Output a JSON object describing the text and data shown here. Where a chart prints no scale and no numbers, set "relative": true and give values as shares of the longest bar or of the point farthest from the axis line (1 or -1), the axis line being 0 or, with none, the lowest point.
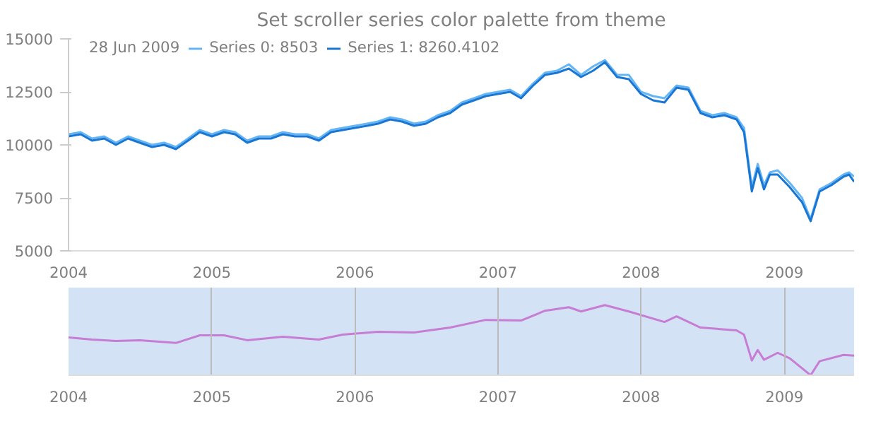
{
  "chart_data": [
    {
      "type": "line",
      "title": "Set scroller series color palette from theme",
      "legend_title": "28 Jun 2009",
      "legend": "top left",
      "grid": false,
      "x": [
        "2004-01-01",
        "2004-02-01",
        "2004-03-01",
        "2004-04-01",
        "2004-05-01",
        "2004-06-01",
        "2004-07-01",
        "2004-08-01",
        "2004-09-01",
        "2004-10-01",
        "2004-11-01",
        "2004-12-01",
        "2005-01-01",
        "2005-02-01",
        "2005-03-01",
        "2005-04-01",
        "2005-05-01",
        "2005-06-01",
        "2005-07-01",
        "2005-08-01",
        "2005-09-01",
        "2005-10-01",
        "2005-11-01",
        "2005-12-01",
        "2006-01-01",
        "2006-02-01",
        "2006-03-01",
        "2006-04-01",
        "2006-05-01",
        "2006-06-01",
        "2006-07-01",
        "2006-08-01",
        "2006-09-01",
        "2006-10-01",
        "2006-11-01",
        "2006-12-01",
        "2007-01-01",
        "2007-02-01",
        "2007-03-01",
        "2007-04-01",
        "2007-05-01",
        "2007-06-01",
        "2007-07-01",
        "2007-08-01",
        "2007-09-01",
        "2007-10-01",
        "2007-11-01",
        "2007-12-01",
        "2008-01-01",
        "2008-02-01",
        "2008-03-01",
        "2008-04-01",
        "2008-05-01",
        "2008-06-01",
        "2008-07-01",
        "2008-08-01",
        "2008-09-01",
        "2008-09-20",
        "2008-10-10",
        "2008-10-25",
        "2008-11-10",
        "2008-11-25",
        "2008-12-15",
        "2009-01-15",
        "2009-02-15",
        "2009-03-09",
        "2009-04-01",
        "2009-05-01",
        "2009-06-01",
        "2009-06-15",
        "2009-06-28"
      ],
      "series": [
        {
          "name": "Series 0: 8503",
          "color": "#64b5f6",
          "values": [
            10500,
            10600,
            10300,
            10400,
            10100,
            10400,
            10200,
            10000,
            10100,
            9900,
            10300,
            10700,
            10500,
            10700,
            10600,
            10200,
            10400,
            10400,
            10600,
            10500,
            10500,
            10300,
            10700,
            10800,
            10900,
            11000,
            11100,
            11300,
            11200,
            11000,
            11100,
            11400,
            11600,
            12000,
            12200,
            12400,
            12500,
            12600,
            12300,
            12900,
            13400,
            13500,
            13800,
            13300,
            13700,
            14000,
            13300,
            13300,
            12500,
            12300,
            12200,
            12800,
            12700,
            11600,
            11400,
            11500,
            11300,
            10800,
            8000,
            9100,
            8100,
            8700,
            8800,
            8200,
            7500,
            6500,
            7900,
            8200,
            8600,
            8700,
            8503
          ]
        },
        {
          "name": "Series 1: 8260.4102",
          "color": "#1976d2",
          "values": [
            10400,
            10500,
            10200,
            10300,
            10000,
            10300,
            10100,
            9900,
            10000,
            9800,
            10200,
            10600,
            10400,
            10600,
            10500,
            10100,
            10300,
            10300,
            10500,
            10400,
            10400,
            10200,
            10600,
            10700,
            10800,
            10900,
            11000,
            11200,
            11100,
            10900,
            11000,
            11300,
            11500,
            11900,
            12100,
            12300,
            12400,
            12500,
            12200,
            12800,
            13300,
            13400,
            13600,
            13200,
            13500,
            13900,
            13200,
            13100,
            12400,
            12100,
            12000,
            12700,
            12600,
            11500,
            11300,
            11400,
            11200,
            10600,
            7800,
            8900,
            7900,
            8600,
            8600,
            8000,
            7300,
            6400,
            7800,
            8100,
            8500,
            8600,
            8260
          ]
        }
      ],
      "xlim": [
        "2004-01-01",
        "2009-06-28"
      ],
      "xticks": [
        {
          "value": "2004-01-01",
          "label": "2004"
        },
        {
          "value": "2005-01-01",
          "label": "2005"
        },
        {
          "value": "2006-01-01",
          "label": "2006"
        },
        {
          "value": "2007-01-01",
          "label": "2007"
        },
        {
          "value": "2008-01-01",
          "label": "2008"
        },
        {
          "value": "2009-01-01",
          "label": "2009"
        }
      ],
      "ylim": [
        5000,
        15000
      ],
      "yticks": [
        5000,
        7500,
        10000,
        12500,
        15000
      ]
    },
    {
      "type": "line",
      "grid": "x",
      "tick_labels": "x",
      "relative": true,
      "x": [
        "2004-01-01",
        "2004-03-01",
        "2004-05-01",
        "2004-07-01",
        "2004-10-01",
        "2004-12-01",
        "2005-02-01",
        "2005-04-01",
        "2005-07-01",
        "2005-10-01",
        "2005-12-01",
        "2006-03-01",
        "2006-06-01",
        "2006-09-01",
        "2006-12-01",
        "2007-03-01",
        "2007-05-01",
        "2007-07-01",
        "2007-08-01",
        "2007-10-01",
        "2007-12-01",
        "2008-03-01",
        "2008-04-01",
        "2008-06-01",
        "2008-09-01",
        "2008-09-20",
        "2008-10-10",
        "2008-10-25",
        "2008-11-10",
        "2008-12-15",
        "2009-01-15",
        "2009-03-09",
        "2009-04-01",
        "2009-06-01",
        "2009-06-28"
      ],
      "series": [
        {
          "color": "#c77dd4",
          "values": [
            0.54,
            0.51,
            0.49,
            0.5,
            0.46,
            0.57,
            0.57,
            0.5,
            0.55,
            0.51,
            0.58,
            0.62,
            0.61,
            0.68,
            0.79,
            0.78,
            0.92,
            0.97,
            0.91,
            1.0,
            0.91,
            0.76,
            0.84,
            0.68,
            0.64,
            0.58,
            0.21,
            0.36,
            0.22,
            0.32,
            0.24,
            0.0,
            0.2,
            0.29,
            0.28
          ]
        }
      ],
      "bands": [
        {
          "axis": "x",
          "from": "2004-01-01",
          "to": "2009-06-28",
          "color": "#d3e3f5"
        }
      ],
      "xlim": [
        "2004-01-01",
        "2009-06-28"
      ],
      "xticks": [
        {
          "value": "2004-01-01",
          "label": "2004"
        },
        {
          "value": "2005-01-01",
          "label": "2005"
        },
        {
          "value": "2006-01-01",
          "label": "2006"
        },
        {
          "value": "2007-01-01",
          "label": "2007"
        },
        {
          "value": "2008-01-01",
          "label": "2008"
        },
        {
          "value": "2009-01-01",
          "label": "2009"
        }
      ]
    }
  ]
}
